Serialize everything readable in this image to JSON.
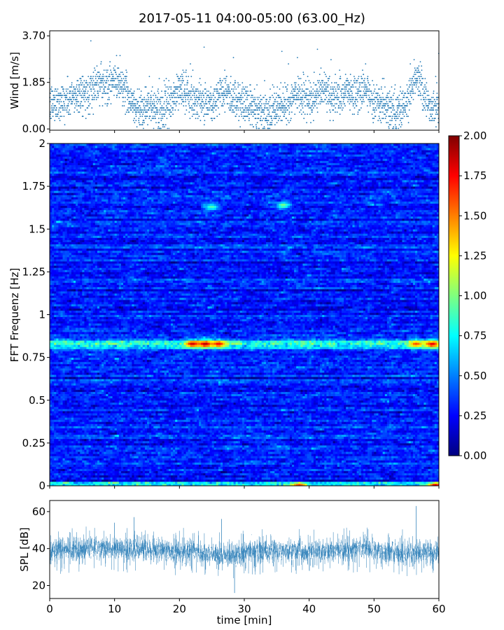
{
  "title": "2017-05-11 04:00-05:00 (63.00_Hz)",
  "colors": {
    "scatter": "#1f77b4",
    "spl": "#1f77b4",
    "axis": "#000000",
    "colormap": [
      "#00007f",
      "#0000ff",
      "#007fff",
      "#00ffff",
      "#7fff7f",
      "#ffff00",
      "#ff7f00",
      "#ff0000",
      "#7f0000"
    ]
  },
  "chart_data": [
    {
      "type": "scatter",
      "name": "wind",
      "ylabel": "Wind [m/s]",
      "yticks": [
        "0.00",
        "1.85",
        "3.70"
      ],
      "ytick_values": [
        0.0,
        1.85,
        3.7
      ],
      "ylim": [
        -0.05,
        3.9
      ],
      "xlim": [
        0,
        60
      ],
      "baseline_mean": 0.95,
      "gusts": [
        {
          "t": 4.8,
          "peak": 2.4
        },
        {
          "t": 7.5,
          "peak": 3.0
        },
        {
          "t": 10.0,
          "peak": 2.95
        },
        {
          "t": 11.5,
          "peak": 2.8
        },
        {
          "t": 20.0,
          "peak": 2.9
        },
        {
          "t": 27.0,
          "peak": 2.5
        },
        {
          "t": 38.5,
          "peak": 2.7
        },
        {
          "t": 42.0,
          "peak": 2.6
        },
        {
          "t": 46.0,
          "peak": 2.4
        },
        {
          "t": 48.5,
          "peak": 2.5
        },
        {
          "t": 56.5,
          "peak": 3.65
        }
      ],
      "max_value": 3.65,
      "sample_count": 3000
    },
    {
      "type": "heatmap",
      "name": "spectrogram",
      "ylabel": "FFT Frequenz [Hz]",
      "yticks": [
        "0",
        "0.25",
        "0.5",
        "0.75",
        "1",
        "1.25",
        "1.5",
        "1.75",
        "2"
      ],
      "ytick_values": [
        0,
        0.25,
        0.5,
        0.75,
        1,
        1.25,
        1.5,
        1.75,
        2
      ],
      "ylim": [
        0,
        2
      ],
      "xlim": [
        0,
        60
      ],
      "freq_bins": 160,
      "time_bins": 180,
      "background_level": 0.3,
      "band": {
        "freq": 0.83,
        "width": 0.02,
        "level": 0.9
      },
      "hotspots": [
        {
          "t": 22,
          "f": 0.83,
          "level": 1.85
        },
        {
          "t": 24,
          "f": 0.83,
          "level": 1.9
        },
        {
          "t": 26,
          "f": 0.83,
          "level": 1.75
        },
        {
          "t": 59,
          "f": 0.83,
          "level": 1.8
        },
        {
          "t": 56.5,
          "f": 0.83,
          "level": 1.6
        },
        {
          "t": 38.5,
          "f": 0.0,
          "level": 1.7
        },
        {
          "t": 59.5,
          "f": 0.0,
          "level": 1.9
        },
        {
          "t": 36,
          "f": 1.64,
          "level": 1.0
        },
        {
          "t": 25,
          "f": 1.63,
          "level": 0.9
        }
      ],
      "colorbar": {
        "ticks": [
          "0.00",
          "0.25",
          "0.50",
          "0.75",
          "1.00",
          "1.25",
          "1.50",
          "1.75",
          "2.00"
        ],
        "tick_values": [
          0,
          0.25,
          0.5,
          0.75,
          1.0,
          1.25,
          1.5,
          1.75,
          2.0
        ],
        "range": [
          0,
          2
        ]
      }
    },
    {
      "type": "line",
      "name": "spl",
      "ylabel": "SPL [dB]",
      "xlabel": "time [min]",
      "yticks": [
        "20",
        "40",
        "60"
      ],
      "ytick_values": [
        20,
        40,
        60
      ],
      "ylim": [
        13,
        66
      ],
      "xlim": [
        0,
        60
      ],
      "xticks": [
        "0",
        "10",
        "20",
        "30",
        "40",
        "50",
        "60"
      ],
      "xtick_values": [
        0,
        10,
        20,
        30,
        40,
        50,
        60
      ],
      "mean_profile": [
        {
          "t": 0,
          "db": 39
        },
        {
          "t": 10,
          "db": 40
        },
        {
          "t": 20,
          "db": 38.5
        },
        {
          "t": 28,
          "db": 36
        },
        {
          "t": 31,
          "db": 39
        },
        {
          "t": 40,
          "db": 38
        },
        {
          "t": 48,
          "db": 40
        },
        {
          "t": 55,
          "db": 37.5
        },
        {
          "t": 60,
          "db": 38
        }
      ],
      "spikes": [
        {
          "t": 10,
          "db": 54
        },
        {
          "t": 13,
          "db": 57
        },
        {
          "t": 26.5,
          "db": 56
        },
        {
          "t": 28.5,
          "db": 16
        },
        {
          "t": 56.5,
          "db": 63
        }
      ]
    }
  ]
}
